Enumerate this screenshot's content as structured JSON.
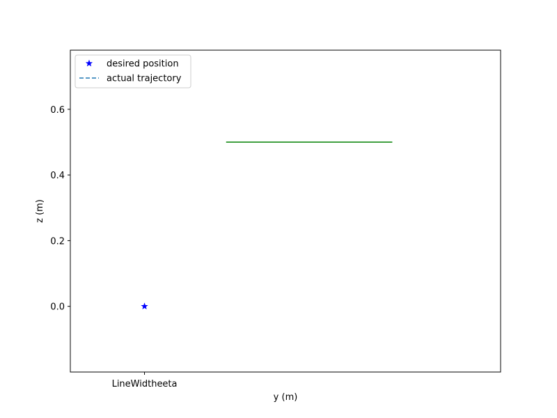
{
  "chart_data": {
    "type": "line",
    "title": "",
    "xlabel": "y (m)",
    "ylabel": "z (m)",
    "x_ticks": [
      {
        "value": 0,
        "label": "LineWidtheeta"
      }
    ],
    "xlim": [
      -0.5,
      2.4
    ],
    "ylim": [
      -0.2,
      0.78
    ],
    "y_ticks": [
      {
        "value": 0.0,
        "label": "0.0"
      },
      {
        "value": 0.2,
        "label": "0.2"
      },
      {
        "value": 0.4,
        "label": "0.4"
      },
      {
        "value": 0.6,
        "label": "0.6"
      }
    ],
    "grid": false,
    "legend_position": "top-left",
    "series": [
      {
        "name": "desired position",
        "kind": "marker",
        "marker": "star",
        "color": "#0000ff",
        "points": [
          {
            "x": 0,
            "y": 0
          }
        ]
      },
      {
        "name": "actual trajectory",
        "kind": "line",
        "style": "dashed",
        "color": "#1f77b4",
        "points": []
      },
      {
        "name": "",
        "kind": "line",
        "style": "solid",
        "color": "#008000",
        "points": [
          {
            "x": 0.55,
            "y": 0.5
          },
          {
            "x": 1.67,
            "y": 0.5
          }
        ]
      }
    ]
  }
}
